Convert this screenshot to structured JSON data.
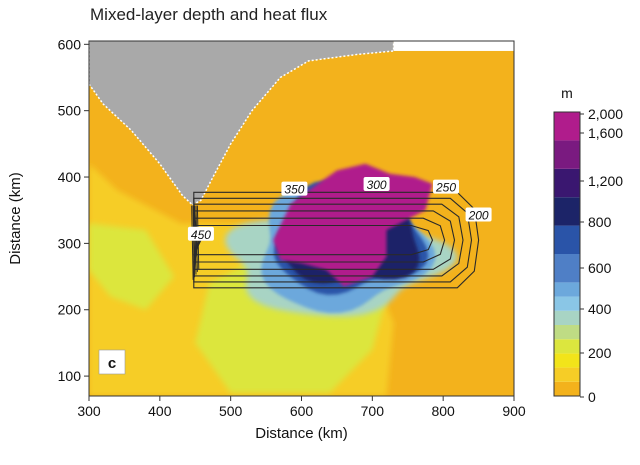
{
  "chart_data": {
    "type": "heatmap",
    "title": "Mixed-layer depth and heat flux",
    "panel_label": "c",
    "xlabel": "Distance (km)",
    "ylabel": "Distance (km)",
    "xlim": [
      300,
      900
    ],
    "ylim": [
      70,
      605
    ],
    "x_ticks": [
      "300",
      "400",
      "500",
      "600",
      "700",
      "800",
      "900"
    ],
    "x_tick_values": [
      300,
      400,
      500,
      600,
      700,
      800,
      900
    ],
    "y_ticks": [
      "100",
      "200",
      "300",
      "400",
      "500",
      "600"
    ],
    "y_tick_values": [
      100,
      200,
      300,
      400,
      500,
      600
    ],
    "colorbar": {
      "unit": "m",
      "labels": [
        "2,000",
        "1,600",
        "1,200",
        "800",
        "600",
        "400",
        "200",
        "0"
      ],
      "label_values": [
        2000,
        1600,
        1200,
        800,
        600,
        400,
        200,
        0
      ],
      "levels": [
        0,
        100,
        200,
        300,
        400,
        500,
        600,
        700,
        800,
        1000,
        1200,
        1400,
        1600,
        1800,
        2000
      ],
      "colors": [
        "#f3b21c",
        "#f6cd26",
        "#f2e41a",
        "#dce63e",
        "#bfdc84",
        "#a8d4c4",
        "#8ac6e6",
        "#6ca8dc",
        "#4f7fc6",
        "#2a54a8",
        "#1c2468",
        "#3a1770",
        "#7a1a80",
        "#b01c8c",
        "#c41f96"
      ]
    },
    "heat_flux_contours": {
      "unit": "",
      "labels": [
        {
          "text": "450",
          "x": 458,
          "y": 313
        },
        {
          "text": "350",
          "x": 590,
          "y": 381
        },
        {
          "text": "300",
          "x": 706,
          "y": 388
        },
        {
          "text": "250",
          "x": 804,
          "y": 384
        },
        {
          "text": "200",
          "x": 850,
          "y": 342
        }
      ]
    },
    "land_region": "grey",
    "grid": false
  }
}
